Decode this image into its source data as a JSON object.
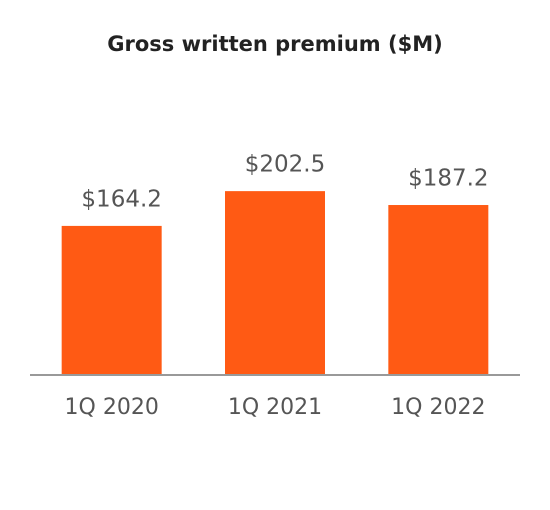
{
  "chart_data": {
    "type": "bar",
    "title": "Gross written premium ($M)",
    "categories": [
      "1Q 2020",
      "1Q 2021",
      "1Q 2022"
    ],
    "values": [
      164.2,
      202.5,
      187.2
    ],
    "value_labels": [
      "$164.2",
      "$202.5",
      "$187.2"
    ],
    "color": "#ff5a14",
    "ylim": [
      0,
      250
    ]
  }
}
